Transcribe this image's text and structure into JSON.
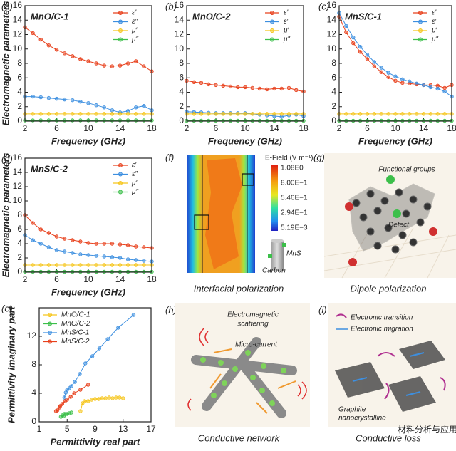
{
  "chart_data": [
    {
      "type": "line",
      "panel": "(a)",
      "title": "MnO/C-1",
      "x": [
        2,
        3,
        4,
        5,
        6,
        7,
        8,
        9,
        10,
        11,
        12,
        13,
        14,
        15,
        16,
        17,
        18
      ],
      "xlim": [
        2,
        18
      ],
      "xticks": [
        2,
        6,
        10,
        14,
        18
      ],
      "ylim": [
        0,
        16
      ],
      "yticks": [
        0,
        2,
        4,
        6,
        8,
        10,
        12,
        14,
        16
      ],
      "xlabel": "Frequency  (GHz)",
      "ylabel": "Electromagnetic parameters",
      "legend": "upper right",
      "series": [
        {
          "name": "ε′",
          "color": "#e8401c",
          "values": [
            13.0,
            12.2,
            11.3,
            10.5,
            9.9,
            9.4,
            9.0,
            8.6,
            8.3,
            8.0,
            7.7,
            7.6,
            7.7,
            8.0,
            8.3,
            7.6,
            6.9
          ]
        },
        {
          "name": "ε″",
          "color": "#3d8fe0",
          "values": [
            3.4,
            3.4,
            3.3,
            3.2,
            3.1,
            3.0,
            2.9,
            2.7,
            2.5,
            2.2,
            1.9,
            1.5,
            1.2,
            1.4,
            1.9,
            2.1,
            1.5
          ]
        },
        {
          "name": "μ′",
          "color": "#f5c51a",
          "values": [
            1.0,
            1.0,
            1.0,
            1.0,
            1.0,
            1.0,
            1.0,
            1.0,
            1.0,
            1.0,
            1.0,
            1.0,
            1.0,
            1.0,
            1.0,
            1.0,
            1.0
          ]
        },
        {
          "name": "μ″",
          "color": "#3cbf4a",
          "values": [
            0.1,
            0.1,
            0.1,
            0.1,
            0.1,
            0.1,
            0.1,
            0.1,
            0.1,
            0.1,
            0.1,
            0.1,
            0.1,
            0.1,
            0.1,
            0.1,
            0.1
          ]
        }
      ]
    },
    {
      "type": "line",
      "panel": "(b)",
      "title": "MnO/C-2",
      "x": [
        2,
        3,
        4,
        5,
        6,
        7,
        8,
        9,
        10,
        11,
        12,
        13,
        14,
        15,
        16,
        17,
        18
      ],
      "xlim": [
        2,
        18
      ],
      "xticks": [
        2,
        6,
        10,
        14,
        18
      ],
      "ylim": [
        0,
        16
      ],
      "yticks": [
        0,
        2,
        4,
        6,
        8,
        10,
        12,
        14,
        16
      ],
      "xlabel": "Frequency  (GHz)",
      "legend": "upper right",
      "series": [
        {
          "name": "ε′",
          "color": "#e8401c",
          "values": [
            5.6,
            5.4,
            5.3,
            5.1,
            5.0,
            4.9,
            4.8,
            4.7,
            4.7,
            4.6,
            4.5,
            4.4,
            4.5,
            4.5,
            4.6,
            4.3,
            4.1
          ]
        },
        {
          "name": "ε″",
          "color": "#3d8fe0",
          "values": [
            1.3,
            1.25,
            1.2,
            1.15,
            1.1,
            1.1,
            1.1,
            1.1,
            1.1,
            1.0,
            0.9,
            0.8,
            0.7,
            0.6,
            0.8,
            0.9,
            0.7
          ]
        },
        {
          "name": "μ′",
          "color": "#f5c51a",
          "values": [
            1.0,
            1.0,
            1.0,
            1.0,
            1.0,
            1.0,
            1.0,
            1.0,
            1.0,
            1.0,
            1.0,
            1.0,
            1.0,
            1.0,
            1.0,
            1.0,
            1.0
          ]
        },
        {
          "name": "μ″",
          "color": "#3cbf4a",
          "values": [
            0.05,
            0.05,
            0.05,
            0.05,
            0.05,
            0.05,
            0.05,
            0.05,
            0.05,
            0.05,
            0.05,
            0.05,
            0.05,
            0.05,
            0.05,
            0.05,
            0.05
          ]
        }
      ]
    },
    {
      "type": "line",
      "panel": "(c)",
      "title": "MnS/C-1",
      "x": [
        2,
        3,
        4,
        5,
        6,
        7,
        8,
        9,
        10,
        11,
        12,
        13,
        14,
        15,
        16,
        17,
        18
      ],
      "xlim": [
        2,
        18
      ],
      "xticks": [
        2,
        6,
        10,
        14,
        18
      ],
      "ylim": [
        0,
        16
      ],
      "yticks": [
        0,
        2,
        4,
        6,
        8,
        10,
        12,
        14,
        16
      ],
      "xlabel": "Frequency  (GHz)",
      "legend": "upper right",
      "series": [
        {
          "name": "ε′",
          "color": "#e8401c",
          "values": [
            14.5,
            12.3,
            10.8,
            9.6,
            8.6,
            7.6,
            6.8,
            6.1,
            5.6,
            5.3,
            5.2,
            5.1,
            5.0,
            5.0,
            4.9,
            4.6,
            5.0
          ]
        },
        {
          "name": "ε″",
          "color": "#3d8fe0",
          "values": [
            15.0,
            13.2,
            11.6,
            10.3,
            9.2,
            8.2,
            7.4,
            6.7,
            6.2,
            5.8,
            5.5,
            5.2,
            5.0,
            4.7,
            4.5,
            4.1,
            3.4
          ]
        },
        {
          "name": "μ′",
          "color": "#f5c51a",
          "values": [
            1.0,
            1.0,
            1.0,
            1.0,
            1.0,
            1.0,
            1.0,
            1.0,
            1.0,
            1.0,
            1.0,
            1.0,
            1.0,
            1.0,
            1.0,
            1.0,
            1.0
          ]
        },
        {
          "name": "μ″",
          "color": "#3cbf4a",
          "values": [
            0.05,
            0.05,
            0.05,
            0.05,
            0.05,
            0.05,
            0.05,
            0.05,
            0.05,
            0.05,
            0.05,
            0.05,
            0.05,
            0.05,
            0.05,
            0.05,
            0.05
          ]
        }
      ]
    },
    {
      "type": "line",
      "panel": "(d)",
      "title": "MnS/C-2",
      "x": [
        2,
        3,
        4,
        5,
        6,
        7,
        8,
        9,
        10,
        11,
        12,
        13,
        14,
        15,
        16,
        17,
        18
      ],
      "xlim": [
        2,
        18
      ],
      "xticks": [
        2,
        6,
        10,
        14,
        18
      ],
      "ylim": [
        0,
        16
      ],
      "yticks": [
        0,
        2,
        4,
        6,
        8,
        10,
        12,
        14,
        16
      ],
      "xlabel": "Frequency  (GHz)",
      "ylabel": "Electromagnetic parameters",
      "legend": "upper right",
      "series": [
        {
          "name": "ε′",
          "color": "#e8401c",
          "values": [
            8.0,
            6.9,
            6.0,
            5.5,
            5.0,
            4.7,
            4.5,
            4.3,
            4.1,
            4.0,
            4.0,
            4.0,
            3.9,
            3.8,
            3.6,
            3.5,
            3.4
          ]
        },
        {
          "name": "ε″",
          "color": "#3d8fe0",
          "values": [
            5.2,
            4.5,
            4.0,
            3.5,
            3.1,
            2.9,
            2.7,
            2.5,
            2.4,
            2.3,
            2.2,
            2.1,
            2.0,
            1.8,
            1.7,
            1.6,
            1.5
          ]
        },
        {
          "name": "μ′",
          "color": "#f5c51a",
          "values": [
            1.0,
            1.0,
            1.0,
            1.0,
            1.0,
            1.0,
            1.0,
            1.0,
            1.0,
            1.0,
            1.0,
            1.0,
            1.0,
            1.0,
            1.0,
            1.0,
            1.0
          ]
        },
        {
          "name": "μ″",
          "color": "#3cbf4a",
          "values": [
            0.05,
            0.05,
            0.05,
            0.05,
            0.05,
            0.05,
            0.05,
            0.05,
            0.05,
            0.05,
            0.05,
            0.05,
            0.05,
            0.05,
            0.05,
            0.05,
            0.05
          ]
        }
      ]
    },
    {
      "type": "scatter",
      "panel": "(e)",
      "xlim": [
        1,
        17
      ],
      "xticks": [
        1,
        5,
        9,
        13,
        17
      ],
      "ylim": [
        0,
        16
      ],
      "yticks": [
        0,
        4,
        8,
        12
      ],
      "xlabel": "Permittivity real part",
      "ylabel": "Permittivity imaginary part",
      "legend": "upper left",
      "series": [
        {
          "name": "MnO/C-1",
          "color": "#f5c51a",
          "x": [
            6.9,
            7.2,
            7.5,
            8.0,
            8.5,
            9.0,
            9.5,
            10.0,
            10.5,
            11.0,
            11.5,
            12.0,
            12.5,
            13.0
          ],
          "values": [
            1.5,
            2.6,
            2.9,
            2.9,
            3.1,
            3.2,
            3.2,
            3.3,
            3.3,
            3.4,
            3.3,
            3.4,
            3.4,
            3.3
          ]
        },
        {
          "name": "MnO/C-2",
          "color": "#3cbf4a",
          "x": [
            4.1,
            4.3,
            4.5,
            4.6,
            4.8,
            5.0,
            5.3,
            5.6
          ],
          "values": [
            0.7,
            0.9,
            0.8,
            1.1,
            1.1,
            1.1,
            1.2,
            1.3
          ]
        },
        {
          "name": "MnS/C-1",
          "color": "#3d8fe0",
          "x": [
            4.6,
            4.8,
            5.0,
            5.3,
            5.6,
            6.1,
            6.8,
            7.6,
            8.6,
            9.6,
            10.8,
            12.3,
            14.5
          ],
          "values": [
            3.4,
            4.1,
            4.5,
            4.7,
            5.0,
            5.6,
            6.7,
            8.2,
            9.2,
            10.3,
            11.6,
            13.2,
            15.0
          ]
        },
        {
          "name": "MnS/C-2",
          "color": "#e8401c",
          "x": [
            3.4,
            3.6,
            3.9,
            4.0,
            4.3,
            4.7,
            5.0,
            5.5,
            6.0,
            6.9,
            8.0
          ],
          "values": [
            1.5,
            1.6,
            2.0,
            2.2,
            2.5,
            2.9,
            3.1,
            3.5,
            4.0,
            4.5,
            5.2
          ]
        }
      ]
    }
  ],
  "figures": [
    {
      "panel": "(f)",
      "caption": "Interfacial polarization",
      "colorbar_title": "E-Field (V m⁻¹)",
      "colorbar_labels": [
        "1.08E0",
        "8.00E−1",
        "5.46E−1",
        "2.94E−1",
        "5.19E−3"
      ],
      "labels": [
        "MnS",
        "Carbon"
      ]
    },
    {
      "panel": "(g)",
      "caption": "Dipole polarization",
      "labels": [
        "Functional groups",
        "Defect"
      ]
    },
    {
      "panel": "(h)",
      "caption": "Conductive network",
      "labels": [
        "Electromagnetic",
        "scattering",
        "Micro-current"
      ]
    },
    {
      "panel": "(i)",
      "caption": "Conductive loss",
      "labels": [
        "Electronic transition",
        "Electronic migration",
        "Graphite",
        "nanocrystalline"
      ]
    }
  ],
  "watermark": "材料分析与应用"
}
